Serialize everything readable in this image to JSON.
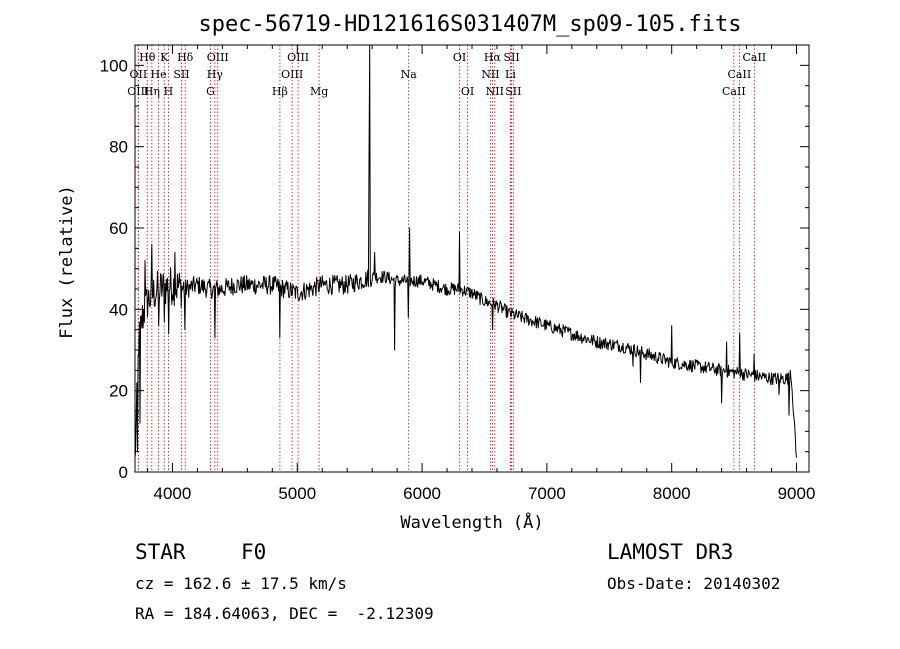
{
  "chart_data": {
    "type": "line",
    "title": "spec-56719-HD121616S031407M_sp09-105.fits",
    "xlabel": "Wavelength (Å)",
    "ylabel": "Flux (relative)",
    "xlim": [
      3700,
      9100
    ],
    "ylim": [
      0,
      105
    ],
    "xticks": [
      4000,
      5000,
      6000,
      7000,
      8000,
      9000
    ],
    "yticks": [
      0,
      20,
      40,
      60,
      80,
      100
    ],
    "x_tick_labels": [
      "4000",
      "5000",
      "6000",
      "7000",
      "8000",
      "9000"
    ],
    "y_tick_labels": [
      "0",
      "20",
      "40",
      "60",
      "80",
      "100"
    ],
    "spectrum_anchors": [
      [
        3700,
        2
      ],
      [
        3730,
        32
      ],
      [
        3760,
        38
      ],
      [
        3800,
        42
      ],
      [
        3850,
        44
      ],
      [
        3900,
        45
      ],
      [
        4000,
        46
      ],
      [
        4100,
        45
      ],
      [
        4200,
        46
      ],
      [
        4300,
        45
      ],
      [
        4400,
        45
      ],
      [
        4500,
        46
      ],
      [
        4600,
        46
      ],
      [
        4700,
        46
      ],
      [
        4800,
        46
      ],
      [
        4900,
        45
      ],
      [
        5000,
        44
      ],
      [
        5100,
        45
      ],
      [
        5200,
        46
      ],
      [
        5300,
        46
      ],
      [
        5400,
        46
      ],
      [
        5500,
        47
      ],
      [
        5600,
        48
      ],
      [
        5700,
        48
      ],
      [
        5800,
        47
      ],
      [
        5900,
        47
      ],
      [
        6000,
        47
      ],
      [
        6100,
        46
      ],
      [
        6200,
        45
      ],
      [
        6300,
        45
      ],
      [
        6400,
        44
      ],
      [
        6500,
        42
      ],
      [
        6600,
        41
      ],
      [
        6700,
        39
      ],
      [
        6800,
        38
      ],
      [
        6900,
        37
      ],
      [
        7000,
        36
      ],
      [
        7200,
        34
      ],
      [
        7400,
        32
      ],
      [
        7600,
        31
      ],
      [
        7800,
        29
      ],
      [
        8000,
        27
      ],
      [
        8200,
        26
      ],
      [
        8400,
        25
      ],
      [
        8600,
        24
      ],
      [
        8800,
        23
      ],
      [
        8960,
        23
      ],
      [
        9000,
        3
      ]
    ],
    "spectrum_features": [
      {
        "x": 3720,
        "y": 5
      },
      {
        "x": 3740,
        "y": 12
      },
      {
        "x": 3780,
        "y": 52
      },
      {
        "x": 3835,
        "y": 56
      },
      {
        "x": 3890,
        "y": 36
      },
      {
        "x": 3935,
        "y": 37
      },
      {
        "x": 3970,
        "y": 34
      },
      {
        "x": 4020,
        "y": 54
      },
      {
        "x": 4102,
        "y": 35
      },
      {
        "x": 4340,
        "y": 33
      },
      {
        "x": 4861,
        "y": 33
      },
      {
        "x": 5577,
        "y": 76
      },
      {
        "x": 5582,
        "y": 105
      },
      {
        "x": 5620,
        "y": 54
      },
      {
        "x": 5780,
        "y": 30
      },
      {
        "x": 5890,
        "y": 38
      },
      {
        "x": 5900,
        "y": 60
      },
      {
        "x": 6300,
        "y": 59
      },
      {
        "x": 6563,
        "y": 35
      },
      {
        "x": 7606,
        "y": 30
      },
      {
        "x": 7690,
        "y": 26
      },
      {
        "x": 7750,
        "y": 22
      },
      {
        "x": 8000,
        "y": 36
      },
      {
        "x": 8400,
        "y": 17
      },
      {
        "x": 8440,
        "y": 32
      },
      {
        "x": 8545,
        "y": 34
      },
      {
        "x": 8660,
        "y": 29
      },
      {
        "x": 8860,
        "y": 19
      },
      {
        "x": 8940,
        "y": 14
      },
      {
        "x": 8950,
        "y": 25
      }
    ],
    "spectral_lines": [
      {
        "label": "Hθ",
        "x": 3798,
        "row": 0
      },
      {
        "label": "K",
        "x": 3934,
        "row": 0
      },
      {
        "label": "Hδ",
        "x": 4102,
        "row": 0
      },
      {
        "label": "OIII",
        "x": 4363,
        "row": 0
      },
      {
        "label": "OIII",
        "x": 5007,
        "row": 0
      },
      {
        "label": "OI",
        "x": 6300,
        "row": 0
      },
      {
        "label": "Hα",
        "x": 6563,
        "row": 0
      },
      {
        "label": "SII",
        "x": 6717,
        "row": 0
      },
      {
        "label": "CaII",
        "x": 8662,
        "row": 0
      },
      {
        "label": "OII",
        "x": 3727,
        "row": 1
      },
      {
        "label": "He",
        "x": 3889,
        "row": 1
      },
      {
        "label": "SII",
        "x": 4072,
        "row": 1
      },
      {
        "label": "Hγ",
        "x": 4340,
        "row": 1
      },
      {
        "label": "OIII",
        "x": 4959,
        "row": 1
      },
      {
        "label": "Na",
        "x": 5893,
        "row": 1
      },
      {
        "label": "NII",
        "x": 6548,
        "row": 1
      },
      {
        "label": "Li",
        "x": 6708,
        "row": 1
      },
      {
        "label": "CaII",
        "x": 8542,
        "row": 1
      },
      {
        "label": "OIII",
        "x": 3726,
        "row": 2
      },
      {
        "label": "Hη",
        "x": 3835,
        "row": 2
      },
      {
        "label": "H",
        "x": 3968,
        "row": 2
      },
      {
        "label": "G",
        "x": 4305,
        "row": 2
      },
      {
        "label": "Hβ",
        "x": 4861,
        "row": 2
      },
      {
        "label": "Mg",
        "x": 5175,
        "row": 2
      },
      {
        "label": "OI",
        "x": 6364,
        "row": 2
      },
      {
        "label": "NII",
        "x": 6583,
        "row": 2
      },
      {
        "label": "SII",
        "x": 6731,
        "row": 2
      },
      {
        "label": "CaII",
        "x": 8498,
        "row": 2
      }
    ]
  },
  "info": {
    "object_class": "STAR",
    "subclass": "F0",
    "survey": "LAMOST DR3",
    "cz": "cz = 162.6 ± 17.5 km/s",
    "obs_date": "Obs-Date: 20140302",
    "coords": "RA = 184.64063, DEC =  -2.12309"
  },
  "colors": {
    "line_marker": "#cc0000",
    "spectrum": "#000000",
    "axis": "#000000"
  }
}
